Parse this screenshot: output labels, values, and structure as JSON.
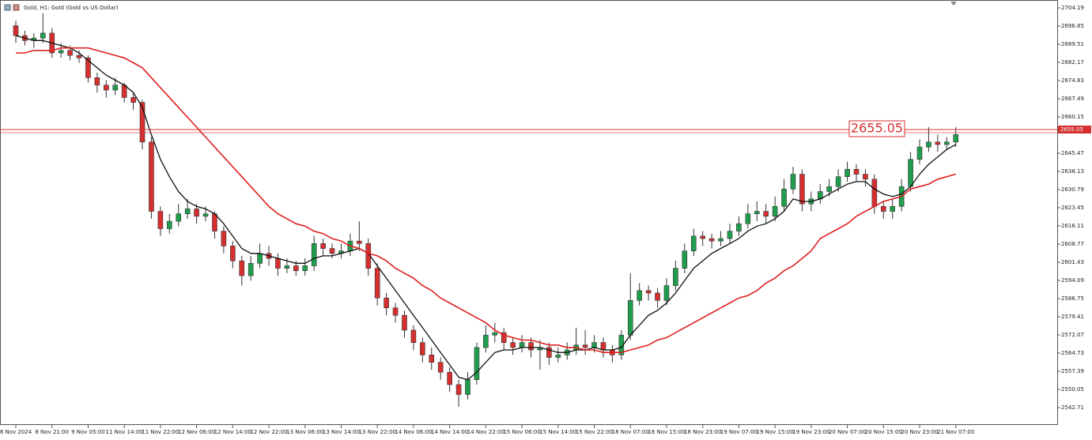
{
  "chart_data": {
    "type": "candlestick",
    "title": "Gold, H1:  Gold (Gold vs US Dollar)",
    "ylim": [
      2535.69,
      2707.38
    ],
    "yticks": [
      {
        "value": 2704.19,
        "label": "2704.19"
      },
      {
        "value": 2696.85,
        "label": "2696.85"
      },
      {
        "value": 2689.51,
        "label": "2689.51"
      },
      {
        "value": 2682.17,
        "label": "2682.17"
      },
      {
        "value": 2674.83,
        "label": "2674.83"
      },
      {
        "value": 2667.49,
        "label": "2667.49"
      },
      {
        "value": 2660.15,
        "label": "2660.15"
      },
      {
        "value": 2645.47,
        "label": "2645.47"
      },
      {
        "value": 2638.13,
        "label": "2638.13"
      },
      {
        "value": 2630.79,
        "label": "2630.79"
      },
      {
        "value": 2623.45,
        "label": "2623.45"
      },
      {
        "value": 2616.11,
        "label": "2616.11"
      },
      {
        "value": 2608.77,
        "label": "2608.77"
      },
      {
        "value": 2601.43,
        "label": "2601.43"
      },
      {
        "value": 2594.09,
        "label": "2594.09"
      },
      {
        "value": 2586.75,
        "label": "2586.75"
      },
      {
        "value": 2579.41,
        "label": "2579.41"
      },
      {
        "value": 2572.07,
        "label": "2572.07"
      },
      {
        "value": 2564.73,
        "label": "2564.73"
      },
      {
        "value": 2557.39,
        "label": "2557.39"
      },
      {
        "value": 2550.05,
        "label": "2550.05"
      },
      {
        "value": 2542.71,
        "label": "2542.71"
      }
    ],
    "xticks": [
      {
        "value": 0,
        "label": "8 Nov 2024"
      },
      {
        "value": 4,
        "label": "8 Nov 21:00"
      },
      {
        "value": 8,
        "label": "9 Nov 05:00"
      },
      {
        "value": 12,
        "label": "11 Nov 14:00"
      },
      {
        "value": 16,
        "label": "11 Nov 22:00"
      },
      {
        "value": 20,
        "label": "12 Nov 06:00"
      },
      {
        "value": 24,
        "label": "12 Nov 14:00"
      },
      {
        "value": 28,
        "label": "12 Nov 22:00"
      },
      {
        "value": 32,
        "label": "13 Nov 06:00"
      },
      {
        "value": 36,
        "label": "13 Nov 14:00"
      },
      {
        "value": 40,
        "label": "13 Nov 22:00"
      },
      {
        "value": 44,
        "label": "14 Nov 06:00"
      },
      {
        "value": 48,
        "label": "14 Nov 14:00"
      },
      {
        "value": 52,
        "label": "14 Nov 22:00"
      },
      {
        "value": 56,
        "label": "15 Nov 06:00"
      },
      {
        "value": 60,
        "label": "15 Nov 14:00"
      },
      {
        "value": 64,
        "label": "15 Nov 22:00"
      },
      {
        "value": 68,
        "label": "18 Nov 07:00"
      },
      {
        "value": 72,
        "label": "18 Nov 15:00"
      },
      {
        "value": 76,
        "label": "18 Nov 23:00"
      },
      {
        "value": 80,
        "label": "19 Nov 07:00"
      },
      {
        "value": 84,
        "label": "19 Nov 15:00"
      },
      {
        "value": 88,
        "label": "19 Nov 23:00"
      },
      {
        "value": 92,
        "label": "20 Nov 07:00"
      },
      {
        "value": 96,
        "label": "20 Nov 15:00"
      },
      {
        "value": 100,
        "label": "20 Nov 23:00"
      },
      {
        "value": 104,
        "label": "21 Nov 07:00"
      }
    ],
    "up_color": "#1f9d4c",
    "down_color": "#d62f2f",
    "open": [
      2697,
      2693,
      2691,
      2692,
      2694,
      2686,
      2687,
      2685,
      2684,
      2676,
      2673,
      2671,
      2673,
      2668,
      2666,
      2650,
      2622,
      2615,
      2618,
      2621,
      2623,
      2620,
      2621,
      2614,
      2608,
      2602,
      2596,
      2601,
      2605,
      2603,
      2599,
      2600,
      2598,
      2600,
      2609,
      2607,
      2605,
      2606,
      2610,
      2609,
      2599,
      2587,
      2583,
      2580,
      2574,
      2569,
      2564,
      2561,
      2557,
      2552,
      2548,
      2554,
      2567,
      2572,
      2573,
      2569,
      2567,
      2569,
      2566,
      2567,
      2563,
      2564,
      2566,
      2568,
      2567,
      2569,
      2566,
      2564,
      2572,
      2586,
      2590,
      2589,
      2586,
      2592,
      2599,
      2606,
      2612,
      2611,
      2610,
      2611,
      2614,
      2617,
      2621,
      2622,
      2620,
      2624,
      2631,
      2637,
      2625,
      2627,
      2630,
      2632,
      2636,
      2639,
      2637,
      2635,
      2624,
      2622,
      2624,
      2632,
      2643,
      2648,
      2650,
      2649,
      2650
    ],
    "high": [
      2699,
      2695,
      2694,
      2702,
      2696,
      2690,
      2689,
      2687,
      2685,
      2678,
      2675,
      2676,
      2674,
      2670,
      2667,
      2652,
      2624,
      2621,
      2625,
      2627,
      2625,
      2624,
      2622,
      2616,
      2610,
      2604,
      2604,
      2609,
      2608,
      2605,
      2603,
      2602,
      2603,
      2612,
      2611,
      2609,
      2609,
      2613,
      2618,
      2611,
      2601,
      2589,
      2585,
      2582,
      2576,
      2571,
      2567,
      2563,
      2559,
      2554,
      2557,
      2569,
      2576,
      2577,
      2575,
      2571,
      2572,
      2571,
      2570,
      2569,
      2567,
      2569,
      2575,
      2574,
      2572,
      2571,
      2568,
      2574,
      2597,
      2593,
      2592,
      2591,
      2595,
      2602,
      2609,
      2615,
      2614,
      2613,
      2614,
      2617,
      2620,
      2625,
      2626,
      2625,
      2628,
      2635,
      2640,
      2639,
      2630,
      2633,
      2635,
      2639,
      2642,
      2641,
      2639,
      2637,
      2626,
      2627,
      2635,
      2646,
      2651,
      2656,
      2653,
      2652,
      2656
    ],
    "low": [
      2690,
      2689,
      2688,
      2690,
      2684,
      2684,
      2683,
      2682,
      2674,
      2670,
      2668,
      2669,
      2666,
      2663,
      2647,
      2619,
      2612,
      2613,
      2616,
      2619,
      2617,
      2618,
      2611,
      2605,
      2599,
      2592,
      2594,
      2599,
      2600,
      2596,
      2597,
      2596,
      2596,
      2598,
      2604,
      2603,
      2603,
      2604,
      2606,
      2596,
      2584,
      2580,
      2577,
      2571,
      2566,
      2561,
      2558,
      2554,
      2549,
      2543,
      2546,
      2552,
      2565,
      2569,
      2566,
      2564,
      2565,
      2563,
      2558,
      2560,
      2561,
      2562,
      2564,
      2564,
      2565,
      2563,
      2561,
      2562,
      2570,
      2584,
      2586,
      2583,
      2584,
      2590,
      2597,
      2604,
      2608,
      2607,
      2608,
      2609,
      2612,
      2615,
      2618,
      2617,
      2618,
      2622,
      2629,
      2622,
      2622,
      2625,
      2628,
      2630,
      2634,
      2634,
      2632,
      2621,
      2619,
      2619,
      2622,
      2630,
      2641,
      2646,
      2646,
      2647,
      2648
    ],
    "close": [
      2693,
      2691,
      2692,
      2694,
      2686,
      2687,
      2685,
      2684,
      2676,
      2673,
      2671,
      2673,
      2668,
      2666,
      2650,
      2622,
      2615,
      2618,
      2621,
      2623,
      2620,
      2621,
      2614,
      2608,
      2602,
      2596,
      2601,
      2605,
      2603,
      2599,
      2600,
      2598,
      2600,
      2609,
      2607,
      2605,
      2606,
      2610,
      2609,
      2599,
      2587,
      2583,
      2580,
      2574,
      2569,
      2564,
      2561,
      2557,
      2552,
      2548,
      2554,
      2567,
      2572,
      2573,
      2569,
      2567,
      2569,
      2566,
      2567,
      2563,
      2564,
      2566,
      2568,
      2567,
      2569,
      2566,
      2564,
      2572,
      2586,
      2590,
      2589,
      2586,
      2592,
      2599,
      2606,
      2612,
      2611,
      2610,
      2611,
      2614,
      2617,
      2621,
      2622,
      2620,
      2624,
      2631,
      2637,
      2625,
      2627,
      2630,
      2632,
      2636,
      2639,
      2637,
      2635,
      2624,
      2622,
      2624,
      2632,
      2643,
      2648,
      2650,
      2649,
      2650,
      2653
    ],
    "series": [
      {
        "color": "#111111",
        "values": [
          2693,
          2692,
          2691,
          2691,
          2690,
          2689,
          2688,
          2686,
          2683,
          2680,
          2677,
          2675,
          2673,
          2670,
          2664,
          2653,
          2643,
          2636,
          2630,
          2626,
          2624,
          2623,
          2621,
          2617,
          2612,
          2607,
          2605,
          2605,
          2604,
          2603,
          2602,
          2601,
          2601,
          2603,
          2604,
          2604,
          2605,
          2606,
          2607,
          2605,
          2600,
          2595,
          2590,
          2585,
          2580,
          2575,
          2570,
          2565,
          2560,
          2555,
          2554,
          2557,
          2561,
          2565,
          2566,
          2566,
          2567,
          2567,
          2567,
          2566,
          2565,
          2565,
          2566,
          2566,
          2567,
          2566,
          2566,
          2567,
          2572,
          2576,
          2580,
          2582,
          2585,
          2589,
          2594,
          2599,
          2602,
          2605,
          2607,
          2609,
          2611,
          2614,
          2616,
          2617,
          2619,
          2622,
          2627,
          2626,
          2626,
          2627,
          2629,
          2631,
          2633,
          2634,
          2634,
          2631,
          2629,
          2628,
          2629,
          2632,
          2637,
          2641,
          2644,
          2647,
          2649
        ]
      },
      {
        "color": "#e02020",
        "values": [
          2686,
          2686,
          2687,
          2687,
          2687,
          2688,
          2688,
          2688,
          2688,
          2687,
          2686,
          2685,
          2684,
          2682,
          2680,
          2676,
          2672,
          2668,
          2664,
          2660,
          2656,
          2652,
          2648,
          2644,
          2640,
          2636,
          2632,
          2628,
          2624,
          2621,
          2619,
          2617,
          2616,
          2614,
          2613,
          2611,
          2610,
          2608,
          2607,
          2605,
          2604,
          2602,
          2599,
          2597,
          2595,
          2592,
          2590,
          2587,
          2585,
          2583,
          2581,
          2579,
          2577,
          2574,
          2572,
          2571,
          2570,
          2570,
          2569,
          2568,
          2568,
          2567,
          2567,
          2566,
          2566,
          2565,
          2565,
          2565,
          2566,
          2567,
          2568,
          2570,
          2571,
          2573,
          2575,
          2577,
          2579,
          2581,
          2583,
          2585,
          2587,
          2588,
          2590,
          2593,
          2595,
          2598,
          2600,
          2603,
          2606,
          2611,
          2613,
          2615,
          2617,
          2620,
          2622,
          2624,
          2626,
          2627,
          2628,
          2631,
          2632,
          2633,
          2635,
          2636,
          2637
        ]
      }
    ],
    "price_line": {
      "value": 2655.05,
      "color": "#d62f2f"
    }
  }
}
